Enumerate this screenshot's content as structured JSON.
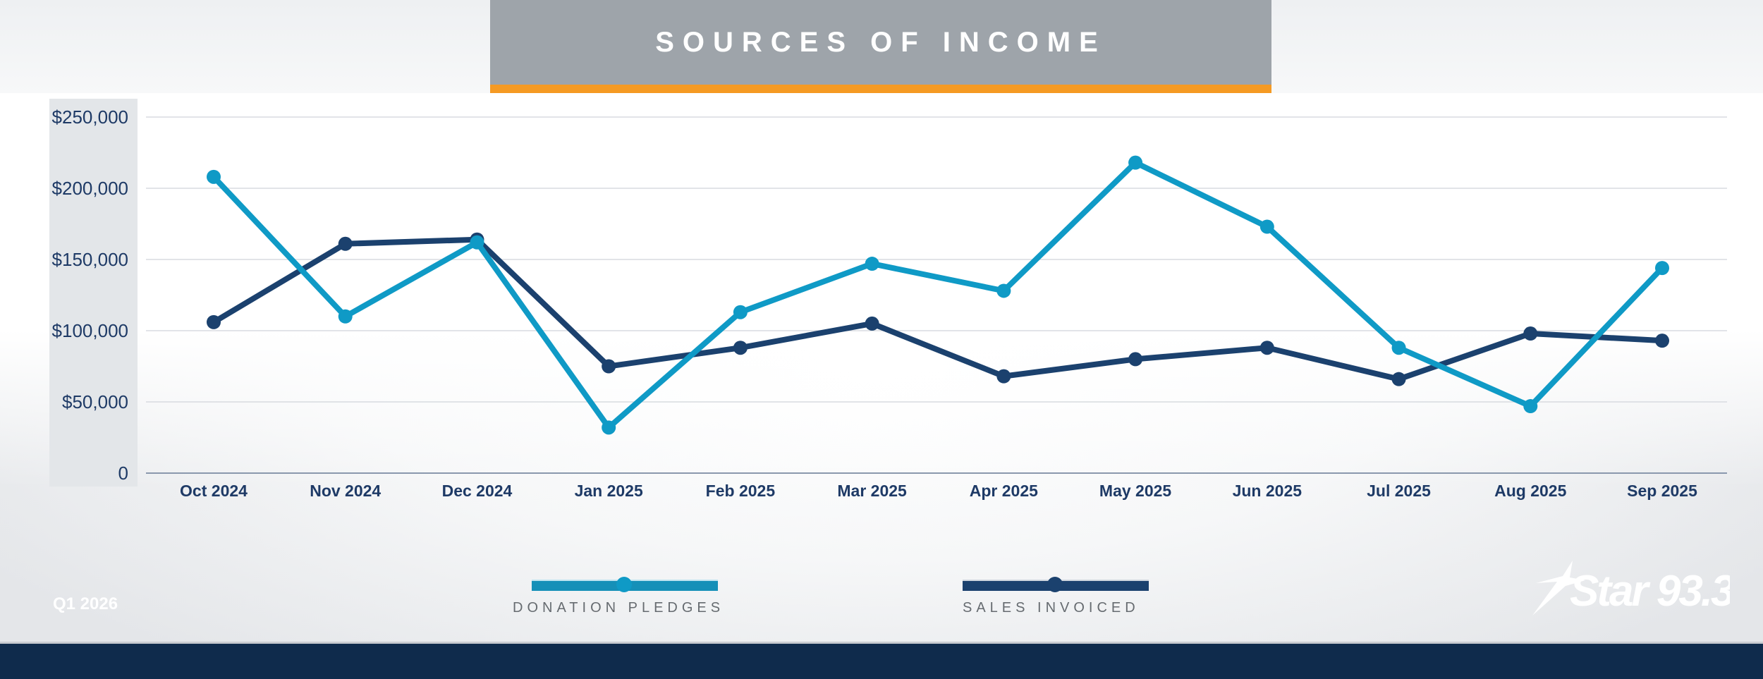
{
  "chart_data": {
    "type": "line",
    "title": "SOURCES OF INCOME",
    "categories": [
      "Oct 2024",
      "Nov 2024",
      "Dec 2024",
      "Jan 2025",
      "Feb 2025",
      "Mar 2025",
      "Apr 2025",
      "May 2025",
      "Jun 2025",
      "Jul 2025",
      "Aug 2025",
      "Sep 2025"
    ],
    "series": [
      {
        "name": "DONATION PLEDGES",
        "color": "#0f9ac6",
        "values": [
          208000,
          110000,
          162000,
          32000,
          113000,
          147000,
          128000,
          218000,
          173000,
          88000,
          47000,
          144000
        ]
      },
      {
        "name": "SALES INVOICED",
        "color": "#1b416e",
        "values": [
          106000,
          161000,
          164000,
          75000,
          88000,
          105000,
          68000,
          80000,
          88000,
          66000,
          98000,
          93000
        ]
      }
    ],
    "yticks": [
      "0",
      "$50,000",
      "$100,000",
      "$150,000",
      "$200,000",
      "$250,000"
    ],
    "ylim": [
      0,
      250000
    ],
    "grid": true,
    "legend": "bottom"
  },
  "footer": {
    "period": "Q1 2026",
    "logo_text": "Star 93.3"
  },
  "colors": {
    "title_bg": "#9ea4aa",
    "accent": "#f59a23",
    "footer": "#0f2b4c"
  }
}
